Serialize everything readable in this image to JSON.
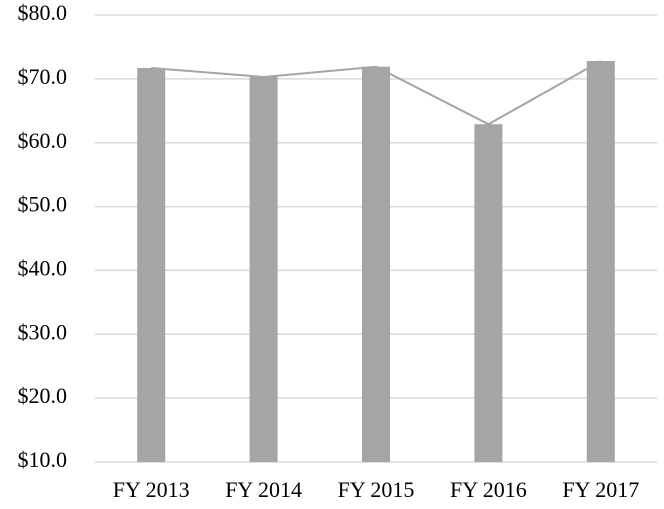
{
  "chart_data": {
    "type": "bar",
    "categories": [
      "FY 2013",
      "FY 2014",
      "FY 2015",
      "FY 2016",
      "FY 2017"
    ],
    "values": [
      71.7,
      70.3,
      71.9,
      62.9,
      72.8
    ],
    "color": "#a5a5a5",
    "line_overlay": true,
    "line_color": "#a5a5a5",
    "ylim": [
      10,
      80
    ],
    "yticks": [
      {
        "value": 10,
        "label": "$10.0"
      },
      {
        "value": 20,
        "label": "$20.0"
      },
      {
        "value": 30,
        "label": "$30.0"
      },
      {
        "value": 40,
        "label": "$40.0"
      },
      {
        "value": 50,
        "label": "$50.0"
      },
      {
        "value": 60,
        "label": "$60.0"
      },
      {
        "value": 70,
        "label": "$70.0"
      },
      {
        "value": 80,
        "label": "$80.0"
      }
    ],
    "grid": true
  }
}
